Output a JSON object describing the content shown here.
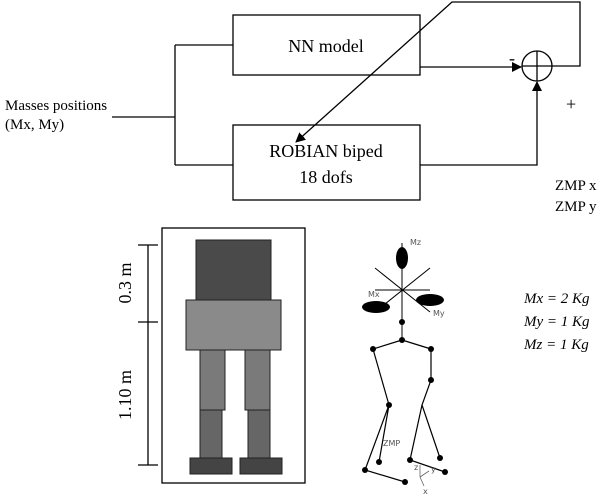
{
  "block_diagram": {
    "nn_box": "NN model",
    "biped_box": [
      "ROBIAN biped",
      "18 dofs"
    ],
    "input_label": [
      "Masses positions",
      "(Mx, My)"
    ],
    "minus_sign": "-",
    "plus_sign": "+",
    "outputs": [
      "ZMP x",
      "ZMP y"
    ]
  },
  "robot_figure": {
    "dimensions": [
      "0.3 m",
      "1.10 m"
    ]
  },
  "stick_model": {
    "mass_labels": [
      "Mz",
      "Mx",
      "My"
    ],
    "zmp_label": "ZMP",
    "axis_labels": [
      "z",
      "y",
      "x"
    ]
  },
  "masses": [
    "Mx = 2 Kg",
    "My = 1 Kg",
    "Mz = 1 Kg"
  ]
}
